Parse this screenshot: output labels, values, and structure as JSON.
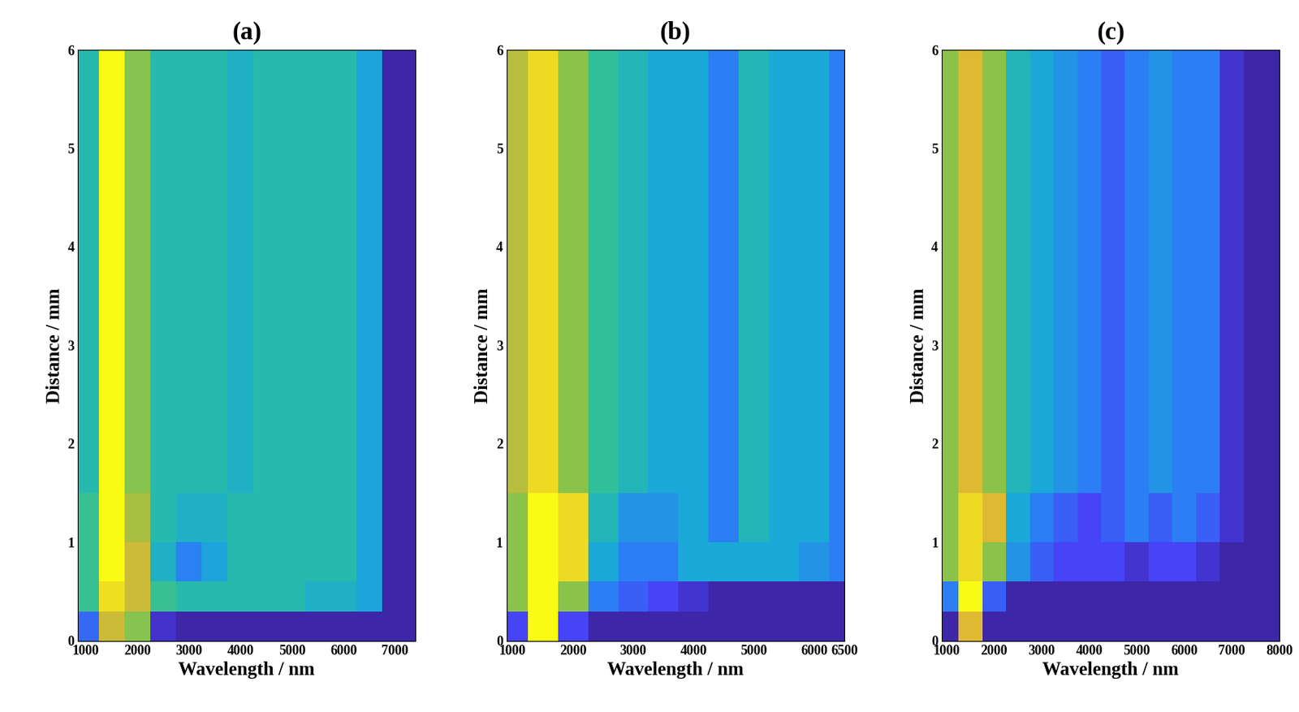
{
  "chart_data": [
    {
      "type": "heatmap",
      "title": "(a)",
      "x_label": "Wavelength / nm",
      "y_label": "Distance / mm",
      "xlim": [
        850,
        7400
      ],
      "xticks": [
        1000,
        2000,
        3000,
        4000,
        5000,
        6000,
        7000
      ],
      "ylim": [
        0,
        6
      ],
      "yticks": [
        0,
        1,
        2,
        3,
        4,
        5,
        6
      ],
      "x_edges": [
        850,
        1250,
        1750,
        2250,
        2750,
        3250,
        3750,
        4250,
        4750,
        5250,
        5750,
        6250,
        6750,
        7400
      ],
      "y_edges": [
        0,
        0.3,
        0.6,
        1.0,
        1.5,
        2.0,
        3.0,
        4.0,
        5.0,
        6.0
      ],
      "cells": [
        [
          0.2,
          0.7,
          0.6,
          0.05,
          0,
          0,
          0,
          0,
          0,
          0,
          0,
          0,
          0
        ],
        [
          0.5,
          0.8,
          0.7,
          0.5,
          0.45,
          0.45,
          0.45,
          0.45,
          0.45,
          0.4,
          0.4,
          0.35,
          0
        ],
        [
          0.5,
          0.85,
          0.7,
          0.4,
          0.25,
          0.35,
          0.45,
          0.45,
          0.45,
          0.45,
          0.45,
          0.35,
          0
        ],
        [
          0.5,
          0.85,
          0.65,
          0.45,
          0.4,
          0.4,
          0.45,
          0.45,
          0.45,
          0.45,
          0.45,
          0.35,
          0
        ],
        [
          0.45,
          0.85,
          0.6,
          0.45,
          0.45,
          0.45,
          0.4,
          0.45,
          0.45,
          0.45,
          0.45,
          0.35,
          0
        ],
        [
          0.45,
          0.85,
          0.6,
          0.45,
          0.45,
          0.45,
          0.4,
          0.45,
          0.45,
          0.45,
          0.45,
          0.35,
          0
        ],
        [
          0.45,
          0.85,
          0.6,
          0.45,
          0.45,
          0.45,
          0.4,
          0.45,
          0.45,
          0.45,
          0.45,
          0.35,
          0
        ],
        [
          0.45,
          0.85,
          0.6,
          0.45,
          0.45,
          0.45,
          0.4,
          0.45,
          0.45,
          0.45,
          0.45,
          0.35,
          0
        ],
        [
          0.45,
          0.85,
          0.6,
          0.45,
          0.45,
          0.45,
          0.4,
          0.45,
          0.45,
          0.45,
          0.45,
          0.35,
          0
        ]
      ]
    },
    {
      "type": "heatmap",
      "title": "(b)",
      "x_label": "Wavelength / nm",
      "y_label": "Distance / mm",
      "xlim": [
        900,
        6500
      ],
      "xticks": [
        1000,
        2000,
        3000,
        4000,
        5000,
        6000,
        6500
      ],
      "ylim": [
        0,
        6
      ],
      "yticks": [
        0,
        1,
        2,
        3,
        4,
        5,
        6
      ],
      "x_edges": [
        900,
        1250,
        1750,
        2250,
        2750,
        3250,
        3750,
        4250,
        4750,
        5250,
        5750,
        6250,
        6500
      ],
      "y_edges": [
        0,
        0.3,
        0.6,
        1.0,
        1.5,
        2.0,
        3.0,
        4.0,
        5.0,
        6.0
      ],
      "cells": [
        [
          0.1,
          0.7,
          0.1,
          0,
          0,
          0,
          0,
          0,
          0,
          0,
          0,
          0
        ],
        [
          0.5,
          0.7,
          0.5,
          0.2,
          0.15,
          0.1,
          0.05,
          0,
          0,
          0,
          0,
          0
        ],
        [
          0.5,
          0.7,
          0.65,
          0.3,
          0.2,
          0.2,
          0.3,
          0.3,
          0.3,
          0.3,
          0.25,
          0.2
        ],
        [
          0.5,
          0.7,
          0.65,
          0.35,
          0.25,
          0.25,
          0.3,
          0.2,
          0.35,
          0.3,
          0.3,
          0.2
        ],
        [
          0.55,
          0.65,
          0.5,
          0.4,
          0.35,
          0.3,
          0.3,
          0.2,
          0.35,
          0.3,
          0.3,
          0.2
        ],
        [
          0.55,
          0.65,
          0.5,
          0.4,
          0.35,
          0.3,
          0.3,
          0.2,
          0.35,
          0.3,
          0.3,
          0.2
        ],
        [
          0.55,
          0.65,
          0.5,
          0.4,
          0.35,
          0.3,
          0.3,
          0.2,
          0.35,
          0.3,
          0.3,
          0.2
        ],
        [
          0.55,
          0.65,
          0.5,
          0.4,
          0.35,
          0.3,
          0.3,
          0.2,
          0.35,
          0.3,
          0.3,
          0.2
        ],
        [
          0.55,
          0.65,
          0.5,
          0.4,
          0.35,
          0.3,
          0.3,
          0.2,
          0.35,
          0.3,
          0.3,
          0.2
        ]
      ]
    },
    {
      "type": "heatmap",
      "title": "(c)",
      "x_label": "Wavelength / nm",
      "y_label": "Distance / mm",
      "xlim": [
        900,
        8000
      ],
      "xticks": [
        1000,
        2000,
        3000,
        4000,
        5000,
        6000,
        7000,
        8000
      ],
      "ylim": [
        0,
        6
      ],
      "yticks": [
        0,
        1,
        2,
        3,
        4,
        5,
        6
      ],
      "x_edges": [
        900,
        1250,
        1750,
        2250,
        2750,
        3250,
        3750,
        4250,
        4750,
        5250,
        5750,
        6250,
        6750,
        7250,
        8000
      ],
      "y_edges": [
        0,
        0.3,
        0.6,
        1.0,
        1.5,
        2.0,
        3.0,
        4.0,
        5.0,
        6.0
      ],
      "cells": [
        [
          0,
          0.6,
          0,
          0,
          0,
          0,
          0,
          0,
          0,
          0,
          0,
          0,
          0,
          0
        ],
        [
          0.2,
          0.7,
          0.15,
          0,
          0,
          0,
          0,
          0,
          0,
          0,
          0,
          0,
          0,
          0
        ],
        [
          0.5,
          0.65,
          0.5,
          0.25,
          0.15,
          0.1,
          0.1,
          0.1,
          0.05,
          0.1,
          0.1,
          0.05,
          0,
          0
        ],
        [
          0.5,
          0.65,
          0.6,
          0.3,
          0.2,
          0.15,
          0.1,
          0.15,
          0.2,
          0.15,
          0.2,
          0.15,
          0.05,
          0
        ],
        [
          0.5,
          0.6,
          0.5,
          0.35,
          0.3,
          0.25,
          0.2,
          0.15,
          0.2,
          0.25,
          0.2,
          0.2,
          0.05,
          0
        ],
        [
          0.5,
          0.6,
          0.5,
          0.35,
          0.3,
          0.25,
          0.2,
          0.15,
          0.2,
          0.25,
          0.2,
          0.2,
          0.05,
          0
        ],
        [
          0.5,
          0.6,
          0.5,
          0.35,
          0.3,
          0.25,
          0.2,
          0.15,
          0.2,
          0.25,
          0.2,
          0.2,
          0.05,
          0
        ],
        [
          0.5,
          0.6,
          0.5,
          0.35,
          0.3,
          0.25,
          0.2,
          0.15,
          0.2,
          0.25,
          0.2,
          0.2,
          0.05,
          0
        ],
        [
          0.5,
          0.6,
          0.5,
          0.35,
          0.3,
          0.25,
          0.2,
          0.15,
          0.2,
          0.25,
          0.2,
          0.2,
          0.05,
          0
        ]
      ]
    }
  ]
}
